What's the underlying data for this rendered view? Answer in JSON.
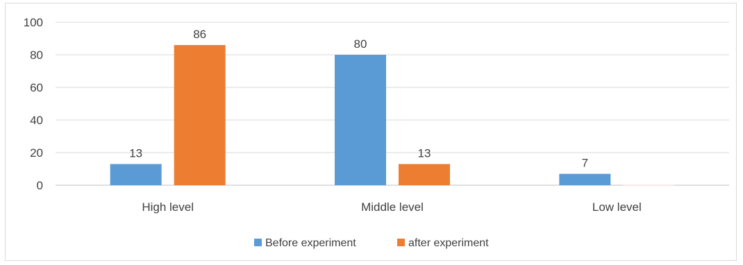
{
  "chart_data": {
    "type": "bar",
    "categories": [
      "High level",
      "Middle level",
      "Low level"
    ],
    "series": [
      {
        "name": "Before experiment",
        "values": [
          13,
          80,
          7
        ],
        "labels": [
          "13",
          "80",
          "7"
        ],
        "color": "#5b9bd5"
      },
      {
        "name": "after experiment",
        "values": [
          86,
          13,
          0.3
        ],
        "labels": [
          "86",
          "13",
          ""
        ],
        "color": "#ed7d31",
        "faded_last": true
      }
    ],
    "yticks": [
      "0",
      "20",
      "40",
      "60",
      "80",
      "100"
    ],
    "ylim": [
      0,
      100
    ],
    "grid": true,
    "legend": "bottom-center"
  }
}
